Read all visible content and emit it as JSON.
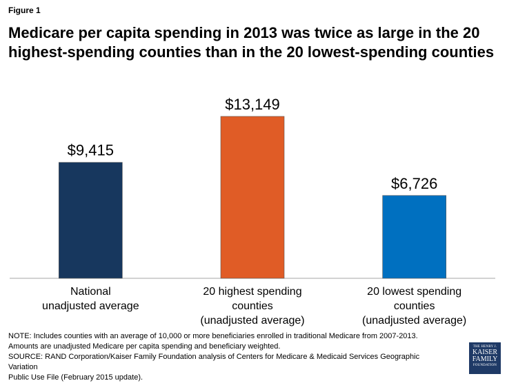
{
  "figure_label": "Figure 1",
  "title_line1": "Medicare per capita spending in 2013 was twice as large in the 20",
  "title_line2": "highest-spending counties than in the 20 lowest-spending counties",
  "chart_data": {
    "type": "bar",
    "categories": [
      [
        "National",
        "unadjusted average"
      ],
      [
        "20 highest spending",
        "counties",
        "(unadjusted average)"
      ],
      [
        "20 lowest spending",
        "counties",
        "(unadjusted average)"
      ]
    ],
    "values": [
      9415,
      13149,
      6726
    ],
    "value_labels": [
      "$9,415",
      "$13,149",
      "$6,726"
    ],
    "colors": [
      "#17375e",
      "#e05c26",
      "#0070c0"
    ],
    "ylim": [
      0,
      16000
    ],
    "grid": false,
    "legend": "none",
    "title": "",
    "xlabel": "",
    "ylabel": ""
  },
  "notes": {
    "line1": "NOTE: Includes counties with an average of 10,000 or more beneficiaries enrolled in traditional Medicare from 2007-2013.",
    "line2": "Amounts are unadjusted Medicare per capita spending and beneficiary weighted.",
    "line3": "SOURCE: RAND Corporation/Kaiser Family Foundation analysis of Centers for Medicare & Medicaid Services Geographic Variation",
    "line4": "Public Use File (February 2015 update)."
  },
  "logo": {
    "line1": "THE HENRY J.",
    "line2": "KAISER",
    "line3": "FAMILY",
    "line4": "FOUNDATION"
  }
}
